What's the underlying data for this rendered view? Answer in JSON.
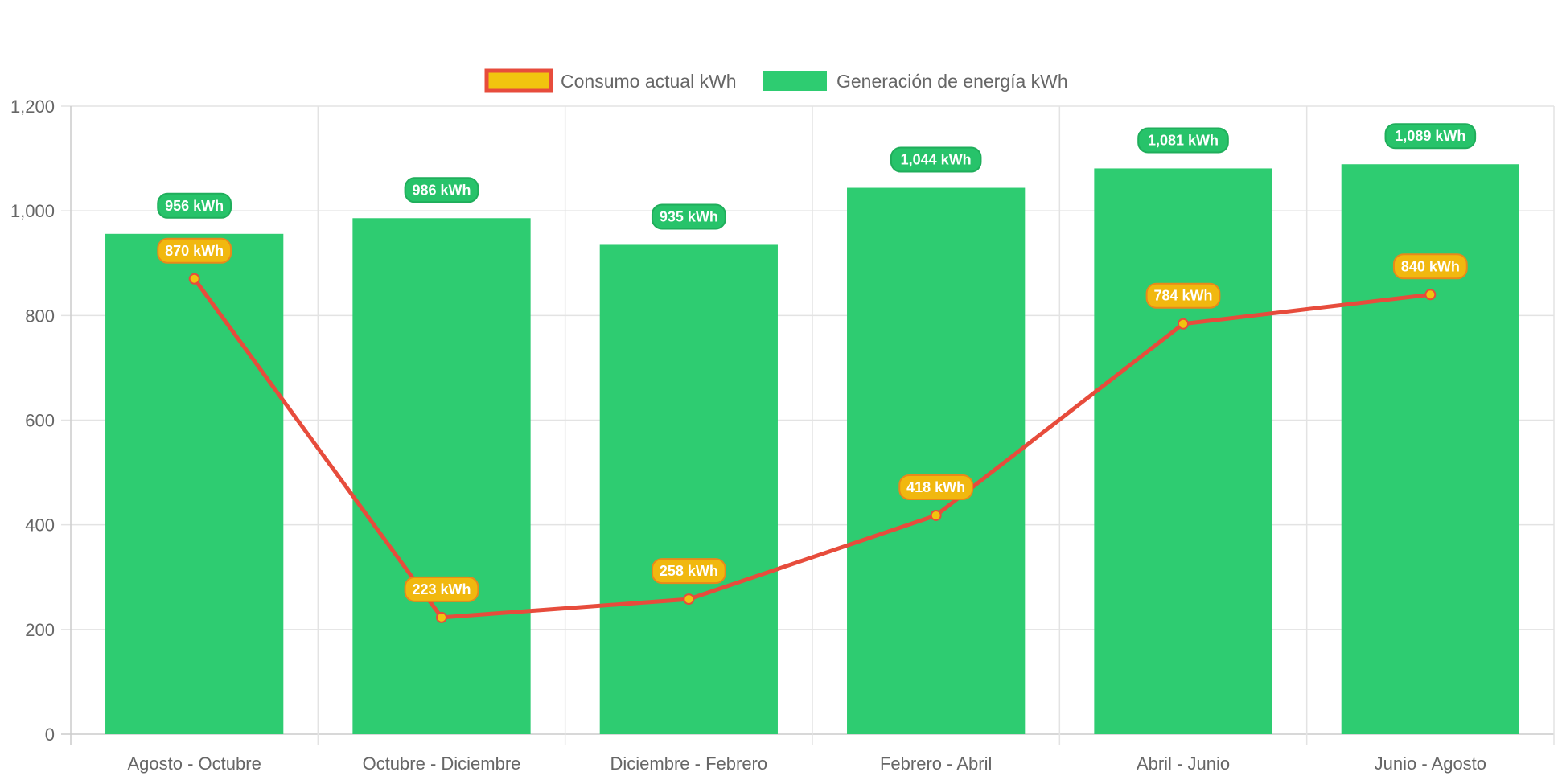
{
  "chart_data": {
    "type": "bar",
    "categories": [
      "Agosto - Octubre",
      "Octubre - Diciembre",
      "Diciembre - Febrero",
      "Febrero - Abril",
      "Abril - Junio",
      "Junio - Agosto"
    ],
    "series": [
      {
        "name": "Consumo actual kWh",
        "type": "line",
        "values": [
          870,
          223,
          258,
          418,
          784,
          840
        ],
        "data_labels": [
          "870 kWh",
          "223 kWh",
          "258 kWh",
          "418 kWh",
          "784 kWh",
          "840 kWh"
        ],
        "line_color": "#e74c3c",
        "fill_color": "#f1c40f",
        "label_color": "#f1b80f"
      },
      {
        "name": "Generación de energía kWh",
        "type": "bar",
        "values": [
          956,
          986,
          935,
          1044,
          1081,
          1089
        ],
        "data_labels": [
          "956 kWh",
          "986 kWh",
          "935 kWh",
          "1,044 kWh",
          "1,081 kWh",
          "1,089 kWh"
        ],
        "color": "#2ecc71",
        "label_color": "#27c36a"
      }
    ],
    "y_ticks": [
      "0",
      "200",
      "400",
      "600",
      "800",
      "1,000",
      "1,200"
    ],
    "ylim": [
      0,
      1200
    ],
    "title": "",
    "xlabel": "",
    "ylabel": "",
    "grid": true,
    "legend": "top-center"
  }
}
